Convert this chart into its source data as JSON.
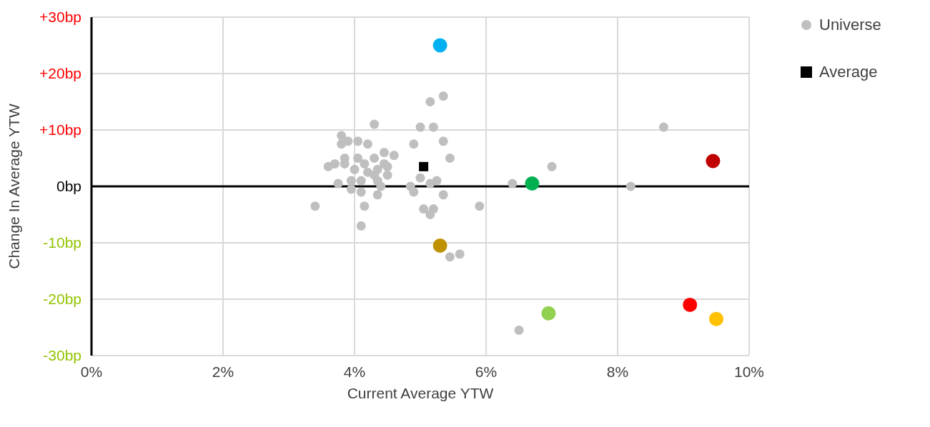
{
  "chart_data": {
    "type": "scatter",
    "xlabel": "Current Average YTW",
    "ylabel": "Change In Average YTW",
    "xlim": [
      0,
      10
    ],
    "xticks": [
      {
        "value": 0,
        "label": "0%"
      },
      {
        "value": 2,
        "label": "2%"
      },
      {
        "value": 4,
        "label": "4%"
      },
      {
        "value": 6,
        "label": "6%"
      },
      {
        "value": 8,
        "label": "8%"
      },
      {
        "value": 10,
        "label": "10%"
      }
    ],
    "ylim": [
      -30,
      30
    ],
    "yticks": [
      {
        "value": -30,
        "label": "-30bp"
      },
      {
        "value": -20,
        "label": "-20bp"
      },
      {
        "value": -10,
        "label": "-10bp"
      },
      {
        "value": 0,
        "label": "0bp"
      },
      {
        "value": 10,
        "label": "+10bp"
      },
      {
        "value": 20,
        "label": "+20bp"
      },
      {
        "value": 30,
        "label": "+30bp"
      }
    ],
    "grid": true,
    "legend": "right",
    "ref_lines": [
      {
        "axis": "y",
        "value": 0,
        "color": "#000000"
      }
    ],
    "series": [
      {
        "name": "Universe",
        "color": "#bfbfbf",
        "marker": "circle",
        "x": [
          3.4,
          3.6,
          3.8,
          3.8,
          3.9,
          4.05,
          4.2,
          4.3,
          3.85,
          3.7,
          3.85,
          4.05,
          4.15,
          4.45,
          4.6,
          4.3,
          4.35,
          4.45,
          4.5,
          4.5,
          4.0,
          4.2,
          4.3,
          4.35,
          4.4,
          3.75,
          3.95,
          3.95,
          4.1,
          4.1,
          4.35,
          4.15,
          4.1,
          4.9,
          5.0,
          5.15,
          5.35,
          5.2,
          5.35,
          5.45,
          4.85,
          4.9,
          5.0,
          5.15,
          5.25,
          5.35,
          5.05,
          5.2,
          5.15,
          5.45,
          5.6,
          5.9,
          6.4,
          7.0,
          6.5,
          8.2,
          8.7
        ],
        "values": [
          -3.5,
          3.5,
          9,
          7.5,
          8,
          8,
          7.5,
          11,
          5,
          4,
          4,
          5,
          4,
          6,
          5.5,
          5,
          3,
          4,
          3.5,
          2,
          3,
          2.5,
          2,
          1,
          0,
          0.5,
          -0.5,
          1,
          1,
          -1,
          -1.5,
          -3.5,
          -7,
          7.5,
          10.5,
          15,
          16,
          10.5,
          8,
          5,
          0,
          -1,
          1.5,
          0.5,
          1,
          -1.5,
          -4,
          -4,
          -5,
          -12.5,
          -12,
          -3.5,
          0.5,
          3.5,
          -25.5,
          0,
          10.5
        ]
      },
      {
        "name": "Average",
        "color": "#000000",
        "marker": "square",
        "x": [
          5.05
        ],
        "values": [
          3.5
        ]
      },
      {
        "color": "#c00000",
        "marker": "circle",
        "x": [
          9.45
        ],
        "values": [
          4.5
        ]
      },
      {
        "color": "#ff0000",
        "marker": "circle",
        "x": [
          9.1
        ],
        "values": [
          -21
        ]
      },
      {
        "color": "#ffc000",
        "marker": "circle",
        "x": [
          9.5
        ],
        "values": [
          -23.5
        ]
      },
      {
        "color": "#bf9000",
        "marker": "circle",
        "x": [
          5.3
        ],
        "values": [
          -10.5
        ]
      },
      {
        "color": "#92d050",
        "marker": "circle",
        "x": [
          6.95
        ],
        "values": [
          -22.5
        ]
      },
      {
        "color": "#00b050",
        "marker": "circle",
        "x": [
          6.7
        ],
        "values": [
          0.5
        ]
      },
      {
        "color": "#00b0f0",
        "marker": "circle",
        "x": [
          5.3
        ],
        "values": [
          25
        ]
      }
    ]
  }
}
